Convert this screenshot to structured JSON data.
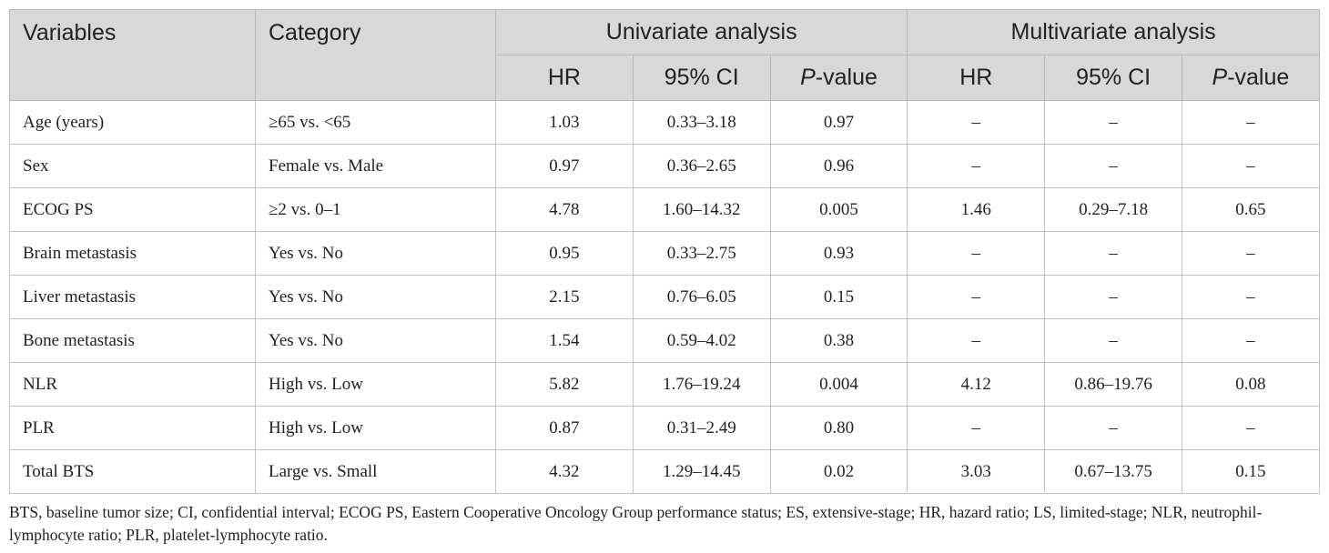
{
  "table": {
    "headers": {
      "variables": "Variables",
      "category": "Category",
      "univariate": "Univariate analysis",
      "multivariate": "Multivariate analysis",
      "hr": "HR",
      "ci": "95% CI",
      "p_italic": "P",
      "p_suffix": "-value"
    },
    "rows": [
      {
        "variable": "Age (years)",
        "category": "≥65 vs. <65",
        "u_hr": "1.03",
        "u_ci": "0.33–3.18",
        "u_p": "0.97",
        "m_hr": "–",
        "m_ci": "–",
        "m_p": "–"
      },
      {
        "variable": "Sex",
        "category": "Female vs. Male",
        "u_hr": "0.97",
        "u_ci": "0.36–2.65",
        "u_p": "0.96",
        "m_hr": "–",
        "m_ci": "–",
        "m_p": "–"
      },
      {
        "variable": "ECOG PS",
        "category": "≥2 vs. 0–1",
        "u_hr": "4.78",
        "u_ci": "1.60–14.32",
        "u_p": "0.005",
        "m_hr": "1.46",
        "m_ci": "0.29–7.18",
        "m_p": "0.65"
      },
      {
        "variable": "Brain metastasis",
        "category": "Yes vs. No",
        "u_hr": "0.95",
        "u_ci": "0.33–2.75",
        "u_p": "0.93",
        "m_hr": "–",
        "m_ci": "–",
        "m_p": "–"
      },
      {
        "variable": "Liver metastasis",
        "category": "Yes vs. No",
        "u_hr": "2.15",
        "u_ci": "0.76–6.05",
        "u_p": "0.15",
        "m_hr": "–",
        "m_ci": "–",
        "m_p": "–"
      },
      {
        "variable": "Bone metastasis",
        "category": "Yes vs. No",
        "u_hr": "1.54",
        "u_ci": "0.59–4.02",
        "u_p": "0.38",
        "m_hr": "–",
        "m_ci": "–",
        "m_p": "–"
      },
      {
        "variable": "NLR",
        "category": "High vs. Low",
        "u_hr": "5.82",
        "u_ci": "1.76–19.24",
        "u_p": "0.004",
        "m_hr": "4.12",
        "m_ci": "0.86–19.76",
        "m_p": "0.08"
      },
      {
        "variable": "PLR",
        "category": "High vs. Low",
        "u_hr": "0.87",
        "u_ci": "0.31–2.49",
        "u_p": "0.80",
        "m_hr": "–",
        "m_ci": "–",
        "m_p": "–"
      },
      {
        "variable": "Total BTS",
        "category": "Large vs. Small",
        "u_hr": "4.32",
        "u_ci": "1.29–14.45",
        "u_p": "0.02",
        "m_hr": "3.03",
        "m_ci": "0.67–13.75",
        "m_p": "0.15"
      }
    ]
  },
  "footnote": "BTS, baseline tumor size; CI, confidential interval; ECOG PS, Eastern Cooperative Oncology Group performance status; ES, extensive-stage; HR, hazard ratio; LS, limited-stage; NLR, neutrophil-lymphocyte ratio; PLR, platelet-lymphocyte ratio.",
  "colors": {
    "header_bg": "#d8d8d8",
    "border": "#c4c4c4",
    "text": "#222222"
  }
}
